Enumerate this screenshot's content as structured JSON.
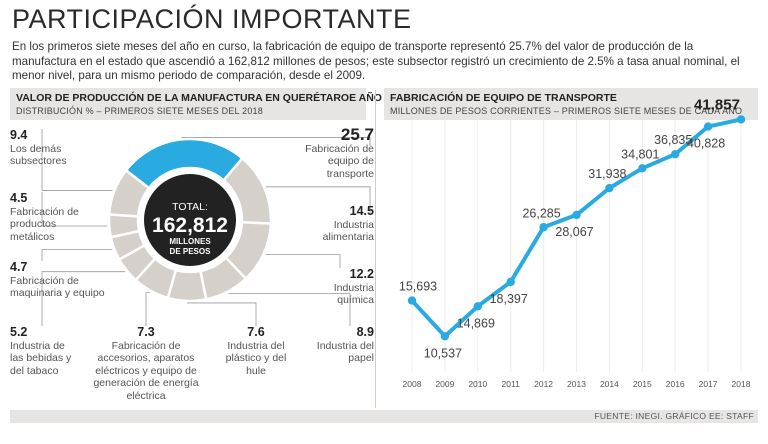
{
  "title": "PARTICIPACIÓN IMPORTANTE",
  "intro": "En los primeros siete meses del año en curso, la fabricación de equipo de transporte representó 25.7% del valor de producción de la manufactura en el estado que ascendió a 162,812 millones de pesos; este subsector registró un crecimiento de 2.5% a tasa anual nominal, el menor nivel, para un mismo periodo de comparación, desde el 2009.",
  "source": "FUENTE: INEGI. GRÁFICO EE: STAFF",
  "colors": {
    "highlight": "#29abe2",
    "slice": "#d6d0ca",
    "center": "#222222",
    "line": "#29abe2"
  },
  "chart_data": [
    {
      "type": "pie",
      "title": "VALOR DE PRODUCCIÓN DE LA MANUFACTURA EN QUERÉTAROE AÑO",
      "subtitle": "DISTRIBUCIÓN % – PRIMEROS SIETE MESES DEL 2018",
      "center": {
        "line1": "TOTAL:",
        "value": "162,812",
        "line3": "MILLONES",
        "line4": "DE PESOS"
      },
      "slices": [
        {
          "value": "25.7",
          "label": "Fabricación de equipo de transporte",
          "highlight": true
        },
        {
          "value": "14.5",
          "label": "Industria alimentaria"
        },
        {
          "value": "12.2",
          "label": "Industria química"
        },
        {
          "value": "8.9",
          "label": "Industria del papel"
        },
        {
          "value": "7.6",
          "label": "Industria del plástico y del hule"
        },
        {
          "value": "7.3",
          "label": "Fabricación de accesorios, aparatos eléctricos y equipo de generación de energía eléctrica"
        },
        {
          "value": "5.2",
          "label": "Industria de las bebidas y del tabaco"
        },
        {
          "value": "4.7",
          "label": "Fabricación de maquinaria y equipo"
        },
        {
          "value": "4.5",
          "label": "Fabricación de productos metálicos"
        },
        {
          "value": "9.4",
          "label": "Los demás subsectores"
        }
      ]
    },
    {
      "type": "line",
      "title": "FABRICACIÓN DE EQUIPO DE TRANSPORTE",
      "subtitle": "MILLONES DE PESOS CORRIENTES – PRIMEROS SIETE MESES DE CADA AÑO",
      "x": [
        "2008",
        "2009",
        "2010",
        "2011",
        "2012",
        "2013",
        "2014",
        "2015",
        "2016",
        "2017",
        "2018"
      ],
      "values": [
        15693,
        10537,
        14869,
        18397,
        26285,
        28067,
        31938,
        34801,
        36835,
        40828,
        41857
      ],
      "labels": [
        "15,693",
        "10,537",
        "14,869",
        "18,397",
        "26,285",
        "28,067",
        "31,938",
        "34,801",
        "36,835",
        "40,828",
        "41,857"
      ],
      "ylim": [
        10000,
        42500
      ]
    }
  ]
}
